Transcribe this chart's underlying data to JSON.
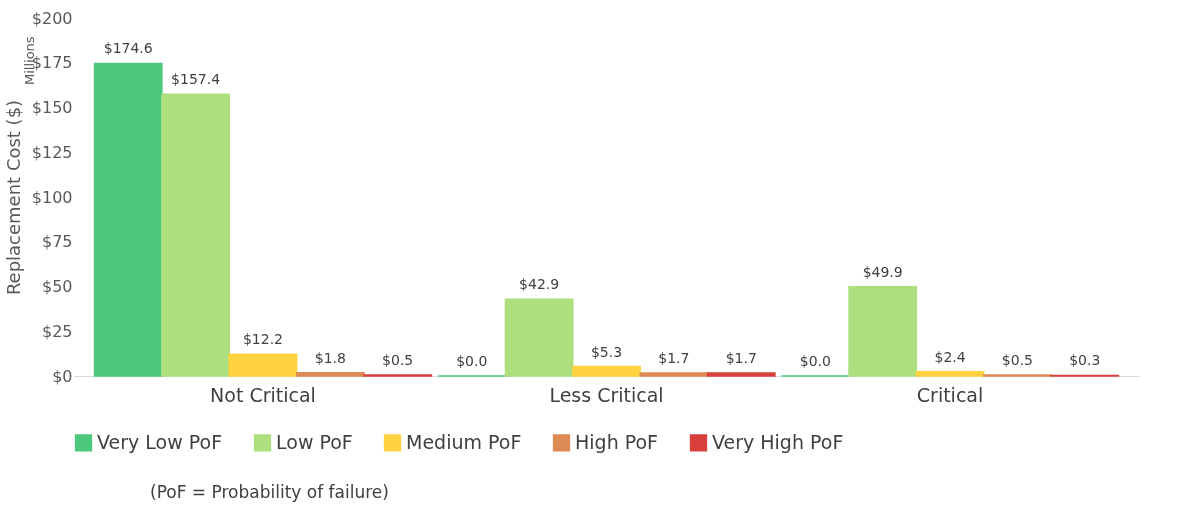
{
  "chart_data": {
    "type": "bar",
    "ylabel": "Replacement Cost ($)",
    "categories": [
      "Not Critical",
      "Less Critical",
      "Critical"
    ],
    "series": [
      {
        "name": "Very Low PoF",
        "color": "#4cc87c",
        "values": [
          174.6,
          0.0,
          0.0
        ],
        "value_labels": [
          "$174.6",
          "$0.0",
          "$0.0"
        ]
      },
      {
        "name": "Low PoF",
        "color": "#aedf7f",
        "values": [
          157.4,
          42.9,
          49.9
        ],
        "value_labels": [
          "$157.4",
          "$42.9",
          "$49.9"
        ]
      },
      {
        "name": "Medium PoF",
        "color": "#ffd23f",
        "values": [
          12.2,
          5.3,
          2.4
        ],
        "value_labels": [
          "$12.2",
          "$5.3",
          "$2.4"
        ]
      },
      {
        "name": "High PoF",
        "color": "#dd8a55",
        "values": [
          1.8,
          1.7,
          0.5
        ],
        "value_labels": [
          "$1.8",
          "$1.7",
          "$0.5"
        ]
      },
      {
        "name": "Very High PoF",
        "color": "#d9403b",
        "values": [
          0.5,
          1.7,
          0.3
        ],
        "value_labels": [
          "$0.5",
          "$1.7",
          "$0.3"
        ]
      }
    ],
    "ylim": [
      0,
      200
    ],
    "yticks": [
      {
        "value": 0,
        "label": "$0"
      },
      {
        "value": 25,
        "label": "$25"
      },
      {
        "value": 50,
        "label": "$50"
      },
      {
        "value": 75,
        "label": "$75"
      },
      {
        "value": 100,
        "label": "$100"
      },
      {
        "value": 125,
        "label": "$125"
      },
      {
        "value": 150,
        "label": "$150"
      },
      {
        "value": 175,
        "label": "$175"
      },
      {
        "value": 200,
        "label": "$200"
      }
    ],
    "legend": "bottom",
    "annotations": [
      "Millions",
      "(PoF = Probability of failure)"
    ]
  }
}
